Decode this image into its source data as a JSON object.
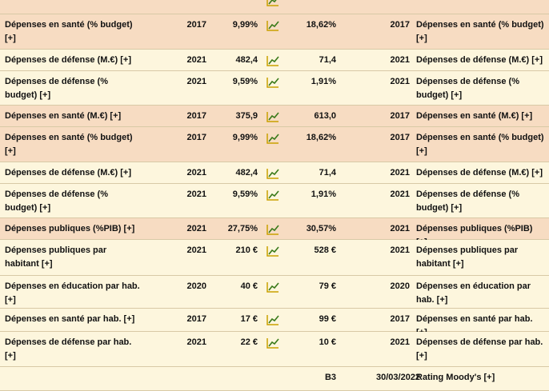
{
  "rows": [
    {
      "label": "",
      "year1": "",
      "val1": "",
      "val2": "",
      "year2": "",
      "label2": "",
      "spark": true,
      "style": "tan",
      "height": 10
    },
    {
      "label": "Dépenses en santé (% budget) [+]",
      "year1": "2017",
      "val1": "9,99%",
      "val2": "18,62%",
      "year2": "2017",
      "label2": "Dépenses en santé (% budget) [+]",
      "spark": true,
      "style": "tan",
      "height": 42
    },
    {
      "label": "Dépenses de défense (M.€) [+]",
      "year1": "2021",
      "val1": "482,4",
      "val2": "71,4",
      "year2": "2021",
      "label2": "Dépenses de défense (M.€) [+]",
      "spark": true,
      "style": "beige",
      "height": 26
    },
    {
      "label": "Dépenses de défense (% budget) [+]",
      "year1": "2021",
      "val1": "9,59%",
      "val2": "1,91%",
      "year2": "2021",
      "label2": "Dépenses de défense (% budget) [+]",
      "spark": true,
      "style": "beige",
      "height": 42
    },
    {
      "label": "Dépenses en santé (M.€) [+]",
      "year1": "2017",
      "val1": "375,9",
      "val2": "613,0",
      "year2": "2017",
      "label2": "Dépenses en santé (M.€) [+]",
      "spark": true,
      "style": "tan",
      "height": 26
    },
    {
      "label": "Dépenses en santé (% budget) [+]",
      "year1": "2017",
      "val1": "9,99%",
      "val2": "18,62%",
      "year2": "2017",
      "label2": "Dépenses en santé (% budget) [+]",
      "spark": true,
      "style": "tan",
      "height": 42
    },
    {
      "label": "Dépenses de défense (M.€) [+]",
      "year1": "2021",
      "val1": "482,4",
      "val2": "71,4",
      "year2": "2021",
      "label2": "Dépenses de défense (M.€) [+]",
      "spark": true,
      "style": "beige",
      "height": 26
    },
    {
      "label": "Dépenses de défense (% budget) [+]",
      "year1": "2021",
      "val1": "9,59%",
      "val2": "1,91%",
      "year2": "2021",
      "label2": "Dépenses de défense (% budget) [+]",
      "spark": true,
      "style": "beige",
      "height": 42
    },
    {
      "label": "Dépenses publiques (%PIB) [+]",
      "year1": "2021",
      "val1": "27,75%",
      "val2": "30,57%",
      "year2": "2021",
      "label2": "Dépenses publiques (%PIB) [+]",
      "spark": true,
      "style": "tan",
      "height": 26
    },
    {
      "label": "Dépenses publiques par habitant [+]",
      "year1": "2021",
      "val1": "210 €",
      "val2": "528 €",
      "year2": "2021",
      "label2": "Dépenses publiques par habitant [+]",
      "spark": true,
      "style": "beige",
      "height": 42
    },
    {
      "label": "Dépenses en éducation par hab. [+]",
      "year1": "2020",
      "val1": "40 €",
      "val2": "79 €",
      "year2": "2020",
      "label2": "Dépenses en éducation par hab. [+]",
      "spark": true,
      "style": "beige",
      "height": 42
    },
    {
      "label": "Dépenses en santé par hab. [+]",
      "year1": "2017",
      "val1": "17 €",
      "val2": "99 €",
      "year2": "2017",
      "label2": "Dépenses en santé par hab. [+]",
      "spark": true,
      "style": "beige",
      "height": 28
    },
    {
      "label": "Dépenses de défense par hab. [+]",
      "year1": "2021",
      "val1": "22 €",
      "val2": "10 €",
      "year2": "2021",
      "label2": "Dépenses de défense par hab. [+]",
      "spark": true,
      "style": "beige",
      "height": 42
    },
    {
      "label": "",
      "year1": "",
      "val1": "",
      "val2": "B3",
      "year2": "30/03/2022",
      "label2": "Rating Moody's [+]",
      "spark": false,
      "style": "beige",
      "height": 30
    }
  ],
  "icons": {
    "spark": "line-chart-icon"
  },
  "colors": {
    "beige": "#fdf6dd",
    "tan": "#f7dcc2",
    "spark_line": "#3a7a1a",
    "spark_axis": "#c9a000"
  }
}
